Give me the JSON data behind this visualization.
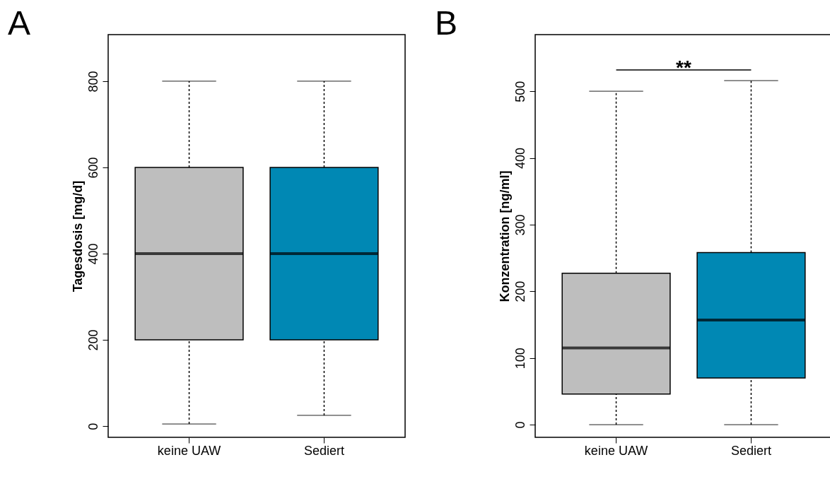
{
  "chart_data": [
    {
      "type": "box",
      "title": "A",
      "ylabel": "Tagesdosis [mg/d]",
      "categories": [
        "keine UAW",
        "Sediert"
      ],
      "colors": [
        "#bebebe",
        "#0088b4"
      ],
      "boxes": [
        {
          "low": 5,
          "q1": 200,
          "median": 400,
          "q3": 600,
          "high": 800
        },
        {
          "low": 25,
          "q1": 200,
          "median": 400,
          "q3": 600,
          "high": 800
        }
      ],
      "ylim": [
        -26,
        908
      ],
      "yticks": [
        0,
        200,
        400,
        600,
        800
      ]
    },
    {
      "type": "box",
      "title": "B",
      "ylabel": "Konzentration [ng/ml]",
      "categories": [
        "keine UAW",
        "Sediert"
      ],
      "colors": [
        "#bebebe",
        "#0088b4"
      ],
      "boxes": [
        {
          "low": 0,
          "q1": 46,
          "median": 115,
          "q3": 227,
          "high": 500
        },
        {
          "low": 0,
          "q1": 70,
          "median": 157,
          "q3": 258,
          "high": 516
        }
      ],
      "ylim": [
        -19,
        585
      ],
      "yticks": [
        0,
        100,
        200,
        300,
        400,
        500
      ],
      "annotations": [
        "**"
      ]
    }
  ]
}
